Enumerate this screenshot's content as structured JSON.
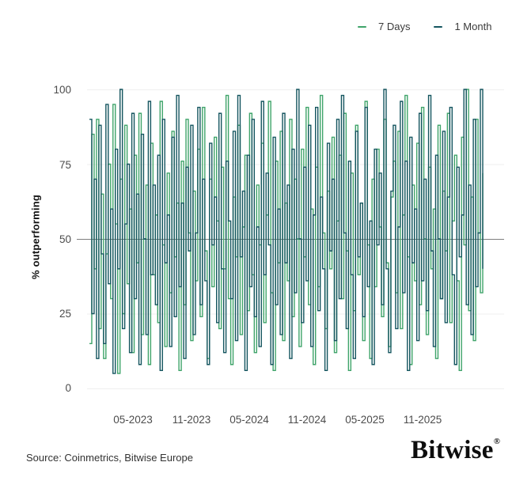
{
  "legend": {
    "items": [
      {
        "label": "7 Days",
        "color": "#3fa46a"
      },
      {
        "label": "1 Month",
        "color": "#14555f"
      }
    ]
  },
  "chart_data": {
    "type": "line",
    "subtype": "step",
    "title": "",
    "xlabel": "",
    "ylabel": "% outperforming",
    "ylim": [
      0,
      100
    ],
    "y_ticks": [
      "100",
      "75",
      "50",
      "25",
      "0"
    ],
    "x_ticks": [
      "05-2023",
      "11-2023",
      "05-2024",
      "11-2024",
      "05-2025",
      "11-2025"
    ],
    "grid": "horizontal-light",
    "reference_line": {
      "value": 50,
      "color": "#7e7e7e"
    },
    "legend_position": "top-right",
    "series": [
      {
        "name": "7 Days",
        "color": "#3fa46a",
        "values": [
          15,
          85,
          40,
          90,
          20,
          65,
          10,
          45,
          75,
          30,
          95,
          55,
          5,
          70,
          25,
          88,
          35,
          60,
          12,
          78,
          42,
          92,
          18,
          50,
          68,
          8,
          82,
          38,
          58,
          22,
          96,
          48,
          14,
          72,
          32,
          86,
          44,
          62,
          6,
          76,
          28,
          90,
          52,
          16,
          66,
          36,
          80,
          24,
          94,
          46,
          10,
          70,
          34,
          84,
          56,
          20,
          74,
          40,
          98,
          30,
          8,
          64,
          44,
          88,
          18,
          54,
          78,
          26,
          92,
          38,
          12,
          68,
          48,
          82,
          22,
          58,
          96,
          32,
          6,
          76,
          42,
          86,
          16,
          62,
          36,
          90,
          24,
          70,
          50,
          14,
          80,
          44,
          94,
          28,
          60,
          8,
          74,
          34,
          98,
          52,
          20,
          66,
          40,
          84,
          12,
          56,
          78,
          30,
          92,
          46,
          6,
          72,
          26,
          88,
          38,
          62,
          16,
          96,
          48,
          10,
          70,
          34,
          80,
          54,
          24,
          90,
          42,
          14,
          64,
          76,
          32,
          86,
          20,
          58,
          98,
          44,
          8,
          68,
          36,
          82,
          28,
          94,
          50,
          18,
          74,
          40,
          60,
          10,
          88,
          30,
          66,
          46,
          92,
          22,
          56,
          78,
          36,
          6,
          84,
          48,
          100,
          26,
          64,
          16,
          90,
          52,
          32,
          72
        ]
      },
      {
        "name": "1 Month",
        "color": "#14555f",
        "values": [
          90,
          25,
          70,
          10,
          88,
          45,
          15,
          95,
          35,
          60,
          5,
          80,
          40,
          100,
          20,
          55,
          75,
          12,
          92,
          30,
          65,
          8,
          85,
          50,
          18,
          96,
          38,
          68,
          28,
          78,
          6,
          90,
          42,
          58,
          14,
          84,
          24,
          98,
          34,
          62,
          10,
          74,
          46,
          88,
          18,
          52,
          94,
          28,
          70,
          36,
          8,
          82,
          48,
          64,
          22,
          92,
          40,
          12,
          76,
          56,
          30,
          86,
          16,
          98,
          44,
          66,
          6,
          78,
          34,
          90,
          24,
          54,
          14,
          96,
          38,
          72,
          48,
          8,
          84,
          28,
          60,
          18,
          92,
          42,
          68,
          10,
          80,
          32,
          100,
          50,
          22,
          74,
          36,
          88,
          14,
          58,
          94,
          26,
          64,
          40,
          6,
          82,
          46,
          70,
          16,
          90,
          30,
          98,
          52,
          20,
          76,
          38,
          10,
          86,
          44,
          62,
          24,
          94,
          34,
          56,
          8,
          80,
          48,
          72,
          28,
          100,
          40,
          12,
          66,
          88,
          20,
          54,
          96,
          32,
          76,
          6,
          84,
          42,
          60,
          16,
          92,
          36,
          70,
          26,
          98,
          46,
          14,
          78,
          50,
          30,
          86,
          22,
          64,
          94,
          38,
          8,
          74,
          44,
          58,
          100,
          28,
          68,
          18,
          90,
          34,
          52,
          100,
          40
        ]
      }
    ]
  },
  "footer": {
    "source": "Source: Coinmetrics, Bitwise Europe",
    "brand": "Bitwise",
    "registered_mark": "®"
  }
}
